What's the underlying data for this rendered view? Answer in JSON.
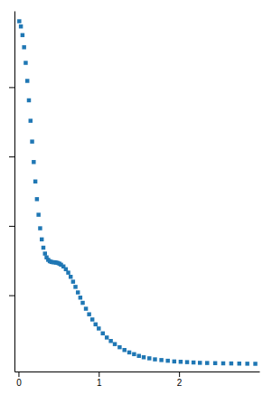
{
  "chart_data": {
    "type": "scatter",
    "x": [
      0.01,
      0.03,
      0.05,
      0.07,
      0.09,
      0.11,
      0.13,
      0.15,
      0.17,
      0.19,
      0.21,
      0.23,
      0.25,
      0.27,
      0.29,
      0.31,
      0.33,
      0.35,
      0.37,
      0.39,
      0.41,
      0.43,
      0.45,
      0.47,
      0.49,
      0.51,
      0.53,
      0.56,
      0.59,
      0.62,
      0.65,
      0.68,
      0.71,
      0.74,
      0.77,
      0.8,
      0.84,
      0.88,
      0.92,
      0.96,
      1.0,
      1.05,
      1.1,
      1.15,
      1.2,
      1.26,
      1.32,
      1.38,
      1.44,
      1.5,
      1.56,
      1.63,
      1.7,
      1.78,
      1.86,
      1.94,
      2.02,
      2.1,
      2.18,
      2.26,
      2.35,
      2.45,
      2.55,
      2.65,
      2.75,
      2.85,
      2.95
    ],
    "values": [
      0.99,
      0.975,
      0.95,
      0.915,
      0.87,
      0.818,
      0.762,
      0.703,
      0.643,
      0.584,
      0.528,
      0.477,
      0.432,
      0.393,
      0.361,
      0.337,
      0.32,
      0.309,
      0.302,
      0.298,
      0.296,
      0.295,
      0.295,
      0.294,
      0.293,
      0.291,
      0.288,
      0.283,
      0.275,
      0.265,
      0.253,
      0.239,
      0.224,
      0.208,
      0.193,
      0.178,
      0.161,
      0.145,
      0.13,
      0.116,
      0.104,
      0.09,
      0.078,
      0.068,
      0.059,
      0.05,
      0.042,
      0.035,
      0.03,
      0.025,
      0.021,
      0.018,
      0.015,
      0.013,
      0.011,
      0.009,
      0.008,
      0.007,
      0.006,
      0.005,
      0.0045,
      0.004,
      0.0035,
      0.0032,
      0.0028,
      0.0025,
      0.0022
    ],
    "errors": [
      0.001,
      0.001,
      0.001,
      0.001,
      0.001,
      0.001,
      0.001,
      0.001,
      0.001,
      0.001,
      0.001,
      0.001,
      0.001,
      0.001,
      0.001,
      0.001,
      0.001,
      0.001,
      0.001,
      0.001,
      0.001,
      0.001,
      0.001,
      0.001,
      0.001,
      0.001,
      0.001,
      0.001,
      0.001,
      0.001,
      0.001,
      0.001,
      0.001,
      0.001,
      0.001,
      0.001,
      0.001,
      0.001,
      0.001,
      0.001,
      0.001,
      0.001,
      0.001,
      0.001,
      0.001,
      0.001,
      0.001,
      0.001,
      0.001,
      0.001,
      0.001,
      0.001,
      0.001,
      0.001,
      0.001,
      0.001,
      0.001,
      0.001,
      0.001,
      0.001,
      0.0008,
      0.001,
      0.001,
      0.0012,
      0.0015,
      0.0018,
      0.002
    ],
    "xlim": [
      -0.05,
      3.0
    ],
    "ylim": [
      -0.02,
      1.02
    ],
    "xticks": [
      0,
      1,
      2
    ],
    "yticks": [
      0.2,
      0.4,
      0.6,
      0.8
    ],
    "tick_labels": "x",
    "marker": "square"
  }
}
